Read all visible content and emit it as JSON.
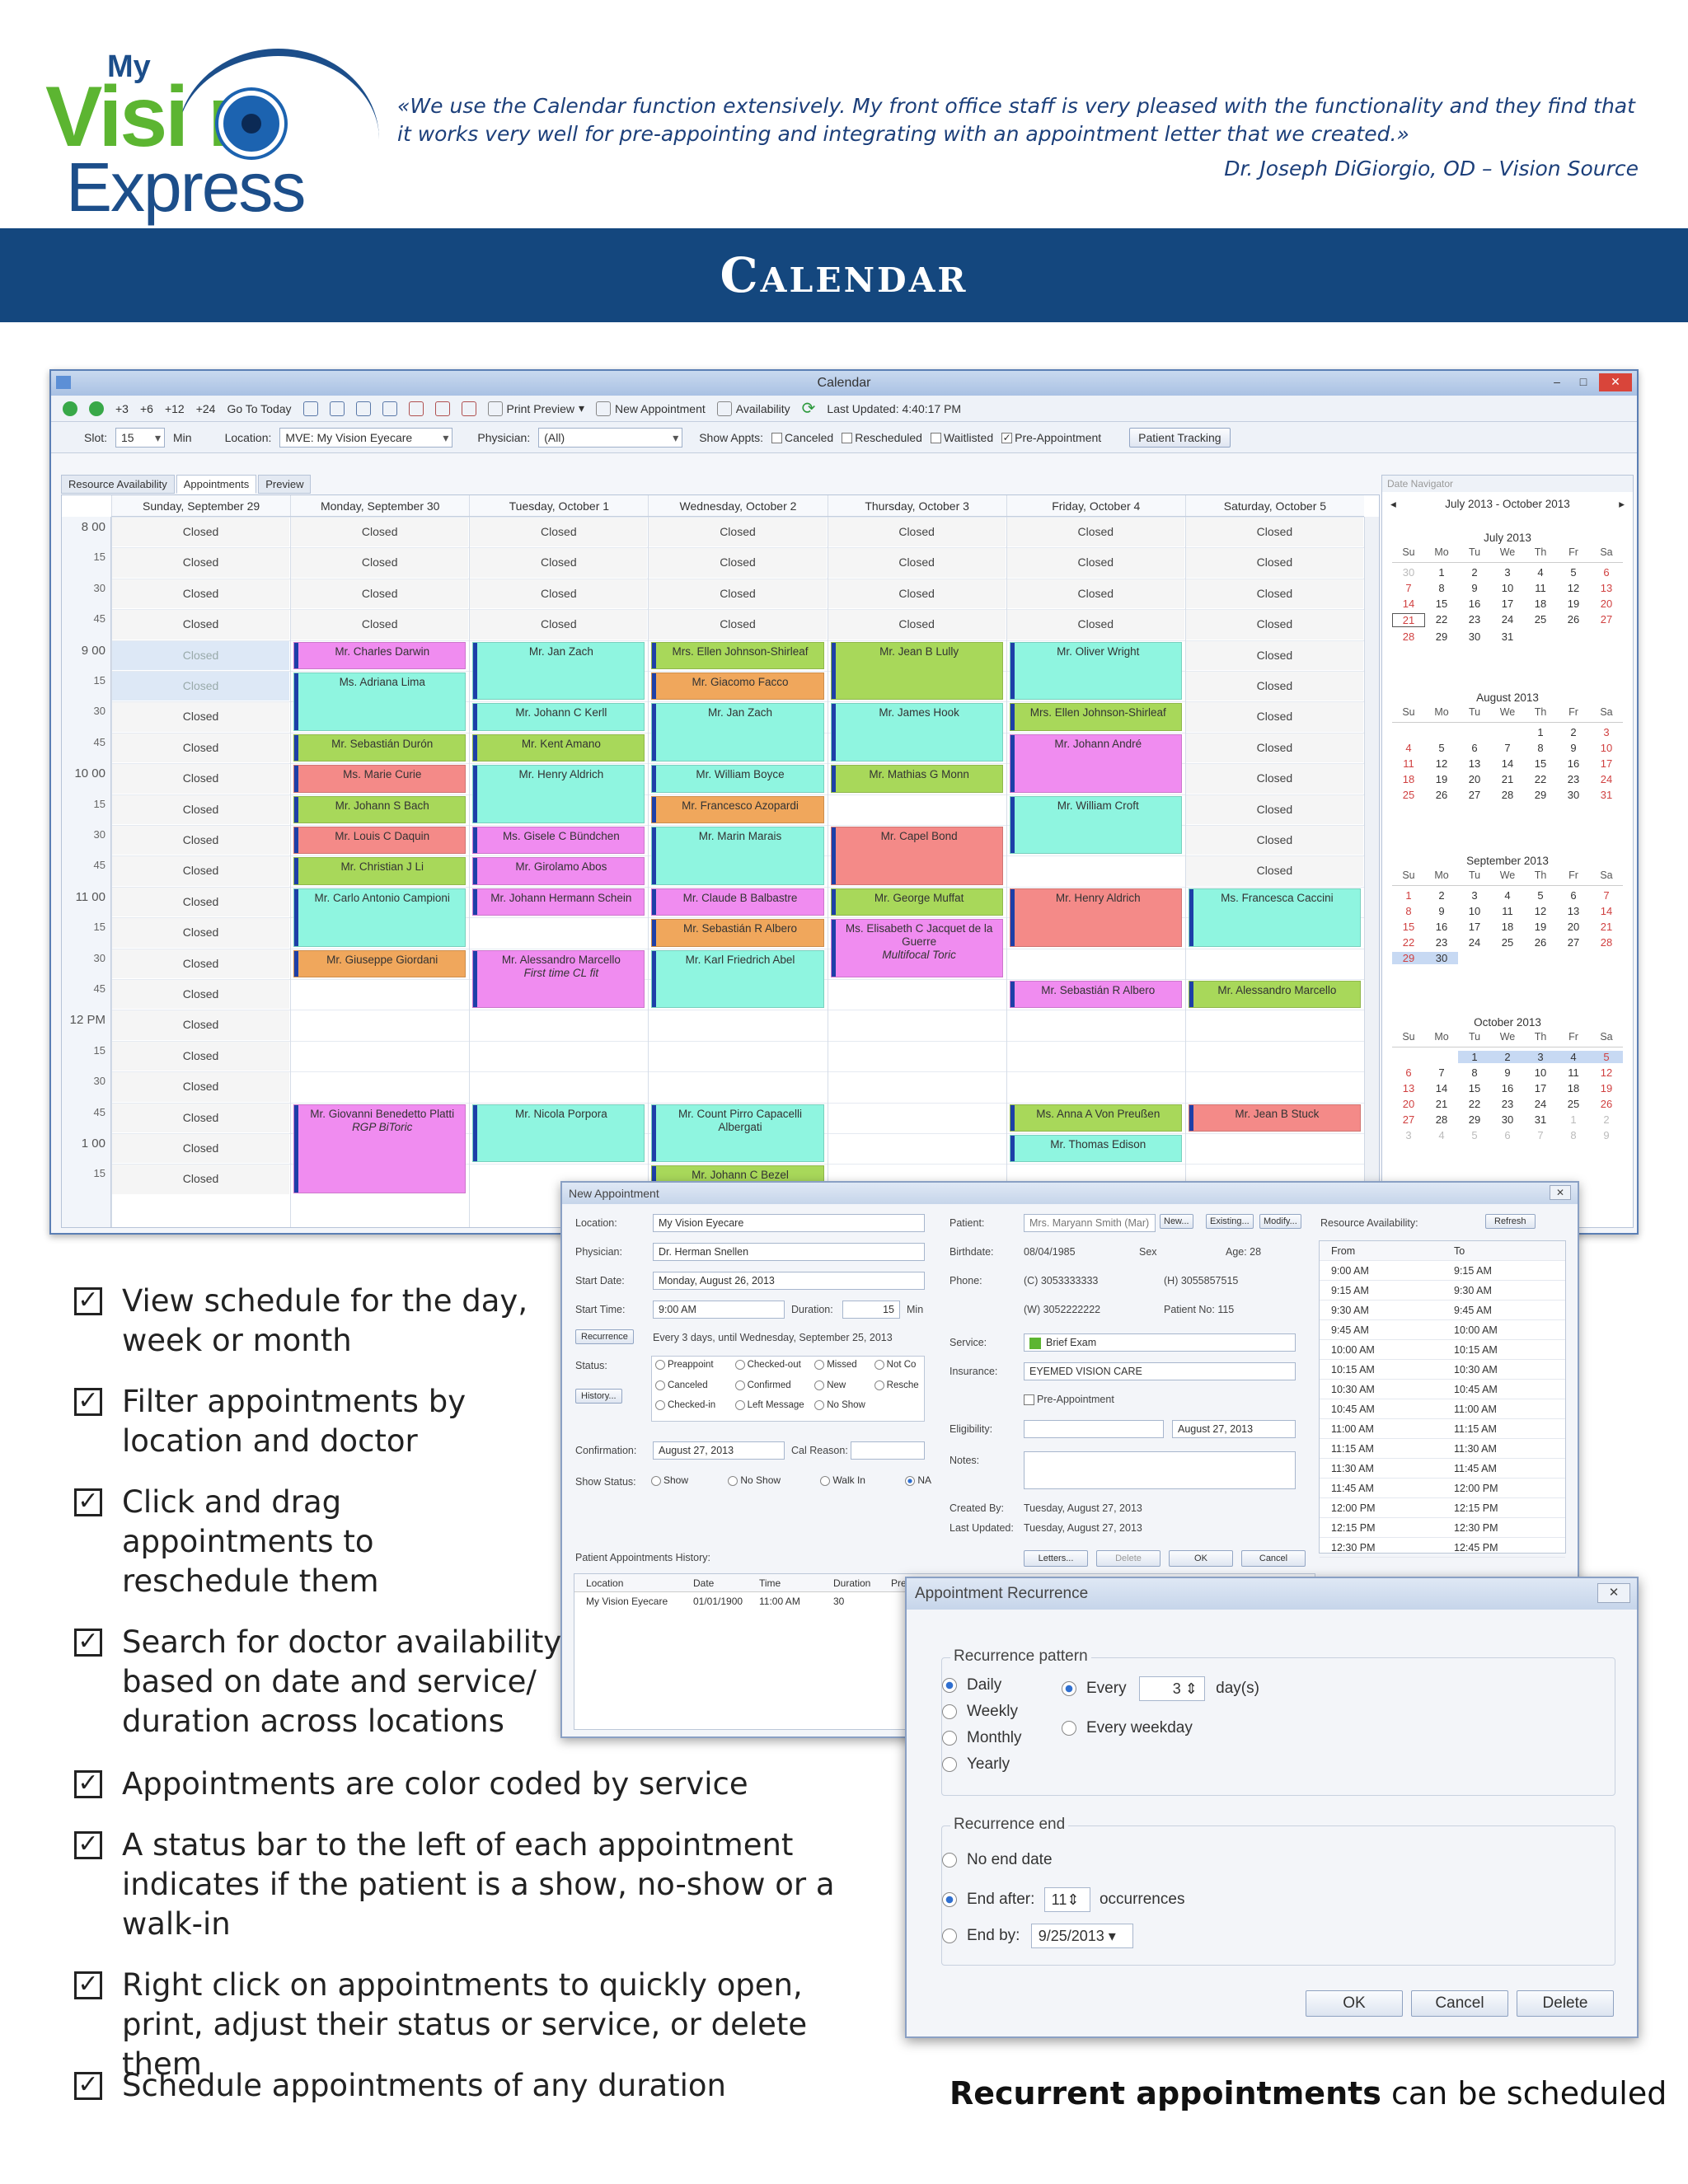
{
  "header": {
    "logo": {
      "my": "My",
      "vision": "Visi n",
      "express": "Express"
    },
    "quote": "«We use the Calendar function extensively. My front office staff is very pleased with the functionality and they find that it works very well for pre-appointing and integrating with an appointment letter that we created.»",
    "quote_author": "Dr. Joseph DiGiorgio, OD – Vision Source",
    "banner_title": "Calendar"
  },
  "calendar_window": {
    "title": "Calendar",
    "toolbar": {
      "increments": [
        "+3",
        "+6",
        "+12",
        "+24"
      ],
      "go_to_today": "Go To Today",
      "print_preview": "Print Preview",
      "new_appointment": "New Appointment",
      "availability": "Availability",
      "last_updated": "Last Updated: 4:40:17 PM"
    },
    "filters": {
      "slot_label": "Slot:",
      "slot_value": "15",
      "min_label": "Min",
      "location_label": "Location:",
      "location_value": "MVE: My Vision Eyecare",
      "physician_label": "Physician:",
      "physician_value": "(All)",
      "show_appts_label": "Show Appts:",
      "checks": [
        {
          "label": "Canceled",
          "checked": false
        },
        {
          "label": "Rescheduled",
          "checked": false
        },
        {
          "label": "Waitlisted",
          "checked": false
        },
        {
          "label": "Pre-Appointment",
          "checked": true
        }
      ],
      "patient_tracking": "Patient Tracking"
    },
    "tabs": [
      "Resource Availability",
      "Appointments",
      "Preview"
    ],
    "days": [
      "Sunday, September 29",
      "Monday, September 30",
      "Tuesday, October 1",
      "Wednesday, October 2",
      "Thursday, October 3",
      "Friday, October 4",
      "Saturday, October 5"
    ],
    "time_labels": [
      {
        "t": "8",
        "m": "00"
      },
      {
        "m": "15"
      },
      {
        "m": "30"
      },
      {
        "m": "45"
      },
      {
        "t": "9",
        "m": "00"
      },
      {
        "m": "15"
      },
      {
        "m": "30"
      },
      {
        "m": "45"
      },
      {
        "t": "10",
        "m": "00"
      },
      {
        "m": "15"
      },
      {
        "m": "30"
      },
      {
        "m": "45"
      },
      {
        "t": "11",
        "m": "00"
      },
      {
        "m": "15"
      },
      {
        "m": "30"
      },
      {
        "m": "45"
      },
      {
        "t": "12",
        "m": "PM"
      },
      {
        "m": "15"
      },
      {
        "m": "30"
      },
      {
        "m": "45"
      },
      {
        "t": "1",
        "m": "00"
      },
      {
        "m": "15"
      }
    ],
    "closed_label": "Closed",
    "closed_slots": [
      [
        0,
        0
      ],
      [
        0,
        1
      ],
      [
        0,
        2
      ],
      [
        0,
        3
      ],
      [
        0,
        4
      ],
      [
        0,
        5
      ],
      [
        0,
        6
      ],
      [
        0,
        7
      ],
      [
        0,
        8
      ],
      [
        0,
        9
      ],
      [
        0,
        10
      ],
      [
        0,
        11
      ],
      [
        0,
        12
      ],
      [
        0,
        13
      ],
      [
        0,
        14
      ],
      [
        0,
        15
      ],
      [
        0,
        16
      ],
      [
        0,
        17
      ],
      [
        0,
        18
      ],
      [
        0,
        19
      ],
      [
        0,
        20
      ],
      [
        0,
        21
      ],
      [
        1,
        0
      ],
      [
        1,
        1
      ],
      [
        1,
        2
      ],
      [
        1,
        3
      ],
      [
        2,
        0
      ],
      [
        2,
        1
      ],
      [
        2,
        2
      ],
      [
        2,
        3
      ],
      [
        3,
        0
      ],
      [
        3,
        1
      ],
      [
        3,
        2
      ],
      [
        3,
        3
      ],
      [
        4,
        0
      ],
      [
        4,
        1
      ],
      [
        4,
        2
      ],
      [
        4,
        3
      ],
      [
        5,
        0
      ],
      [
        5,
        1
      ],
      [
        5,
        2
      ],
      [
        5,
        3
      ],
      [
        6,
        0
      ],
      [
        6,
        1
      ],
      [
        6,
        2
      ],
      [
        6,
        3
      ],
      [
        6,
        4
      ],
      [
        6,
        5
      ],
      [
        6,
        6
      ],
      [
        6,
        7
      ],
      [
        6,
        8
      ],
      [
        6,
        9
      ],
      [
        6,
        10
      ],
      [
        6,
        11
      ]
    ],
    "appointments": [
      {
        "day": 1,
        "start": 4,
        "len": 1,
        "color": "#f08cf0",
        "label": "Mr. Charles Darwin"
      },
      {
        "day": 1,
        "start": 5,
        "len": 2,
        "color": "#8ff5e0",
        "label": "Ms. Adriana Lima"
      },
      {
        "day": 1,
        "start": 7,
        "len": 1,
        "color": "#a8d85a",
        "label": "Mr. Sebastián Durón"
      },
      {
        "day": 1,
        "start": 8,
        "len": 1,
        "color": "#f48a88",
        "label": "Ms. Marie Curie"
      },
      {
        "day": 1,
        "start": 9,
        "len": 1,
        "color": "#a8d85a",
        "label": "Mr. Johann S Bach"
      },
      {
        "day": 1,
        "start": 10,
        "len": 1,
        "color": "#f48a88",
        "label": "Mr. Louis C Daquin"
      },
      {
        "day": 1,
        "start": 11,
        "len": 1,
        "color": "#a8d85a",
        "label": "Mr. Christian J Li"
      },
      {
        "day": 1,
        "start": 12,
        "len": 2,
        "color": "#8ff5e0",
        "label": "Mr. Carlo Antonio Campioni"
      },
      {
        "day": 1,
        "start": 14,
        "len": 1,
        "color": "#f0a75c",
        "label": "Mr. Giuseppe Giordani"
      },
      {
        "day": 1,
        "start": 19,
        "len": 3,
        "color": "#f08cf0",
        "label": "Mr. Giovanni Benedetto Platti",
        "note": "RGP BiToric"
      },
      {
        "day": 2,
        "start": 4,
        "len": 2,
        "color": "#8ff5e0",
        "label": "Mr. Jan Zach"
      },
      {
        "day": 2,
        "start": 6,
        "len": 1,
        "color": "#8ff5e0",
        "label": "Mr. Johann C Kerll"
      },
      {
        "day": 2,
        "start": 7,
        "len": 1,
        "color": "#a8d85a",
        "label": "Mr. Kent Amano"
      },
      {
        "day": 2,
        "start": 8,
        "len": 2,
        "color": "#8ff5e0",
        "label": "Mr. Henry Aldrich"
      },
      {
        "day": 2,
        "start": 10,
        "len": 1,
        "color": "#f08cf0",
        "label": "Ms. Gisele C Bündchen"
      },
      {
        "day": 2,
        "start": 11,
        "len": 1,
        "color": "#f08cf0",
        "label": "Mr. Girolamo Abos"
      },
      {
        "day": 2,
        "start": 12,
        "len": 1,
        "color": "#f08cf0",
        "label": "Mr. Johann Hermann Schein"
      },
      {
        "day": 2,
        "start": 14,
        "len": 2,
        "color": "#f08cf0",
        "label": "Mr. Alessandro Marcello",
        "note": "First time CL fit"
      },
      {
        "day": 2,
        "start": 19,
        "len": 2,
        "color": "#8ff5e0",
        "label": "Mr. Nicola Porpora"
      },
      {
        "day": 3,
        "start": 4,
        "len": 1,
        "color": "#a8d85a",
        "label": "Mrs. Ellen Johnson-Shirleaf"
      },
      {
        "day": 3,
        "start": 5,
        "len": 1,
        "color": "#f0a75c",
        "label": "Mr. Giacomo Facco"
      },
      {
        "day": 3,
        "start": 6,
        "len": 2,
        "color": "#8ff5e0",
        "label": "Mr. Jan Zach"
      },
      {
        "day": 3,
        "start": 8,
        "len": 1,
        "color": "#8ff5e0",
        "label": "Mr. William Boyce"
      },
      {
        "day": 3,
        "start": 9,
        "len": 1,
        "color": "#f0a75c",
        "label": "Mr. Francesco Azopardi"
      },
      {
        "day": 3,
        "start": 10,
        "len": 2,
        "color": "#8ff5e0",
        "label": "Mr. Marin Marais"
      },
      {
        "day": 3,
        "start": 12,
        "len": 1,
        "color": "#f08cf0",
        "label": "Mr. Claude B Balbastre"
      },
      {
        "day": 3,
        "start": 13,
        "len": 1,
        "color": "#f0a75c",
        "label": "Mr. Sebastián R Albero"
      },
      {
        "day": 3,
        "start": 14,
        "len": 2,
        "color": "#8ff5e0",
        "label": "Mr. Karl Friedrich Abel"
      },
      {
        "day": 3,
        "start": 19,
        "len": 2,
        "color": "#8ff5e0",
        "label": "Mr. Count Pirro Capacelli Albergati"
      },
      {
        "day": 3,
        "start": 21,
        "len": 1,
        "color": "#a8d85a",
        "label": "Mr. Johann C Bezel"
      },
      {
        "day": 4,
        "start": 4,
        "len": 2,
        "color": "#a8d85a",
        "label": "Mr. Jean B Lully"
      },
      {
        "day": 4,
        "start": 6,
        "len": 2,
        "color": "#8ff5e0",
        "label": "Mr. James Hook"
      },
      {
        "day": 4,
        "start": 8,
        "len": 1,
        "color": "#a8d85a",
        "label": "Mr. Mathias G Monn"
      },
      {
        "day": 4,
        "start": 10,
        "len": 2,
        "color": "#f48a88",
        "label": "Mr. Capel Bond"
      },
      {
        "day": 4,
        "start": 12,
        "len": 1,
        "color": "#a8d85a",
        "label": "Mr. George Muffat"
      },
      {
        "day": 4,
        "start": 13,
        "len": 2,
        "color": "#f08cf0",
        "label": "Ms. Elisabeth C Jacquet de la Guerre",
        "note": "Multifocal Toric"
      },
      {
        "day": 5,
        "start": 4,
        "len": 2,
        "color": "#8ff5e0",
        "label": "Mr. Oliver Wright"
      },
      {
        "day": 5,
        "start": 6,
        "len": 1,
        "color": "#a8d85a",
        "label": "Mrs. Ellen Johnson-Shirleaf"
      },
      {
        "day": 5,
        "start": 7,
        "len": 2,
        "color": "#f08cf0",
        "label": "Mr. Johann André"
      },
      {
        "day": 5,
        "start": 9,
        "len": 2,
        "color": "#8ff5e0",
        "label": "Mr. William Croft"
      },
      {
        "day": 5,
        "start": 12,
        "len": 2,
        "color": "#f48a88",
        "label": "Mr. Henry Aldrich"
      },
      {
        "day": 5,
        "start": 15,
        "len": 1,
        "color": "#f08cf0",
        "label": "Mr. Sebastián R Albero"
      },
      {
        "day": 5,
        "start": 19,
        "len": 1,
        "color": "#a8d85a",
        "label": "Ms. Anna A Von Preußen"
      },
      {
        "day": 5,
        "start": 20,
        "len": 1,
        "color": "#8ff5e0",
        "label": "Mr. Thomas Edison"
      },
      {
        "day": 6,
        "start": 12,
        "len": 2,
        "color": "#8ff5e0",
        "label": "Ms. Francesca Caccini"
      },
      {
        "day": 6,
        "start": 15,
        "len": 1,
        "color": "#a8d85a",
        "label": "Mr. Alessandro Marcello"
      },
      {
        "day": 6,
        "start": 19,
        "len": 1,
        "color": "#f48a88",
        "label": "Mr. Jean B Stuck"
      }
    ],
    "navigator": {
      "title": "Date Navigator",
      "range": "July 2013 - October 2013",
      "dow": [
        "Su",
        "Mo",
        "Tu",
        "We",
        "Th",
        "Fr",
        "Sa"
      ],
      "months": [
        {
          "name": "July 2013",
          "days": [
            "30",
            "1",
            "2",
            "3",
            "4",
            "5",
            "6",
            "7",
            "8",
            "9",
            "10",
            "11",
            "12",
            "13",
            "14",
            "15",
            "16",
            "17",
            "18",
            "19",
            "20",
            "21",
            "22",
            "23",
            "24",
            "25",
            "26",
            "27",
            "28",
            "29",
            "30",
            "31"
          ]
        },
        {
          "name": "August 2013",
          "days": [
            "",
            "",
            "",
            "",
            "1",
            "2",
            "3",
            "4",
            "5",
            "6",
            "7",
            "8",
            "9",
            "10",
            "11",
            "12",
            "13",
            "14",
            "15",
            "16",
            "17",
            "18",
            "19",
            "20",
            "21",
            "22",
            "23",
            "24",
            "25",
            "26",
            "27",
            "28",
            "29",
            "30",
            "31"
          ]
        },
        {
          "name": "September 2013",
          "days": [
            "1",
            "2",
            "3",
            "4",
            "5",
            "6",
            "7",
            "8",
            "9",
            "10",
            "11",
            "12",
            "13",
            "14",
            "15",
            "16",
            "17",
            "18",
            "19",
            "20",
            "21",
            "22",
            "23",
            "24",
            "25",
            "26",
            "27",
            "28",
            "29",
            "30"
          ]
        },
        {
          "name": "October 2013",
          "days": [
            "",
            "",
            "1",
            "2",
            "3",
            "4",
            "5",
            "6",
            "7",
            "8",
            "9",
            "10",
            "11",
            "12",
            "13",
            "14",
            "15",
            "16",
            "17",
            "18",
            "19",
            "20",
            "21",
            "22",
            "23",
            "24",
            "25",
            "26",
            "27",
            "28",
            "29",
            "30",
            "31",
            "1",
            "2",
            "3",
            "4",
            "5",
            "6",
            "7",
            "8",
            "9"
          ]
        }
      ]
    }
  },
  "new_appointment": {
    "title": "New Appointment",
    "location_label": "Location:",
    "location_value": "My Vision Eyecare",
    "physician_label": "Physician:",
    "physician_value": "Dr. Herman Snellen",
    "start_date_label": "Start Date:",
    "start_date_value": "Monday, August 26, 2013",
    "start_time_label": "Start Time:",
    "start_time_value": "9:00 AM",
    "duration_label": "Duration:",
    "duration_value": "15",
    "duration_unit": "Min",
    "recurrence_button": "Recurrence",
    "recurrence_text": "Every 3 days, until Wednesday, September 25, 2013",
    "status_label": "Status:",
    "history_button": "History...",
    "status_options": [
      "Preappoint",
      "Checked-out",
      "Missed",
      "Not Co",
      "Canceled",
      "Confirmed",
      "New",
      "Resche",
      "Checked-in",
      "Left Message",
      "No Show"
    ],
    "confirmation_label": "Confirmation:",
    "confirmation_value": "August 27, 2013",
    "cal_reason_label": "Cal Reason:",
    "show_status_label": "Show Status:",
    "show_status_options": [
      "Show",
      "No Show",
      "Walk In",
      "NA"
    ],
    "patient_label": "Patient:",
    "patient_value": "Mrs. Maryann Smith (Mar)",
    "patient_buttons": [
      "New...",
      "Existing...",
      "Modify..."
    ],
    "birthdate_label": "Birthdate:",
    "birthdate_value": "08/04/1985",
    "sex_label": "Sex",
    "age_label": "Age: 28",
    "phone_label": "Phone:",
    "phone_c": "(C) 3053333333",
    "phone_h": "(H) 3055857515",
    "phone_w": "(W) 3052222222",
    "patient_no": "Patient No: 115",
    "service_label": "Service:",
    "service_value": "Brief Exam",
    "insurance_label": "Insurance:",
    "insurance_value": "EYEMED VISION CARE",
    "pre_appointment": "Pre-Appointment",
    "eligibility_label": "Eligibility:",
    "eligibility_date": "August 27, 2013",
    "notes_label": "Notes:",
    "created_by_label": "Created By:",
    "created_by_value": "Tuesday, August 27, 2013",
    "last_updated_label": "Last Updated:",
    "last_updated_value": "Tuesday, August 27, 2013",
    "bottom_buttons": [
      "Letters...",
      "Delete",
      "OK",
      "Cancel"
    ],
    "history_label": "Patient Appointments History:",
    "history_cols": [
      "Location",
      "Date",
      "Time",
      "Duration",
      "Pre-App"
    ],
    "history_row": [
      "My Vision Eyecare",
      "01/01/1900",
      "11:00 AM",
      "30",
      ""
    ],
    "resource_label": "Resource Availability:",
    "refresh": "Refresh",
    "resource_cols": [
      "From",
      "To"
    ],
    "resource_rows": [
      [
        "9:00 AM",
        "9:15 AM"
      ],
      [
        "9:15 AM",
        "9:30 AM"
      ],
      [
        "9:30 AM",
        "9:45 AM"
      ],
      [
        "9:45 AM",
        "10:00 AM"
      ],
      [
        "10:00 AM",
        "10:15 AM"
      ],
      [
        "10:15 AM",
        "10:30 AM"
      ],
      [
        "10:30 AM",
        "10:45 AM"
      ],
      [
        "10:45 AM",
        "11:00 AM"
      ],
      [
        "11:00 AM",
        "11:15 AM"
      ],
      [
        "11:15 AM",
        "11:30 AM"
      ],
      [
        "11:30 AM",
        "11:45 AM"
      ],
      [
        "11:45 AM",
        "12:00 PM"
      ],
      [
        "12:00 PM",
        "12:15 PM"
      ],
      [
        "12:15 PM",
        "12:30 PM"
      ],
      [
        "12:30 PM",
        "12:45 PM"
      ]
    ]
  },
  "recurrence": {
    "title": "Appointment Recurrence",
    "pattern_label": "Recurrence pattern",
    "patterns": [
      "Daily",
      "Weekly",
      "Monthly",
      "Yearly"
    ],
    "every_label": "Every",
    "every_value": "3",
    "every_unit": "day(s)",
    "every_weekday": "Every weekday",
    "end_label": "Recurrence end",
    "no_end": "No end date",
    "end_after": "End after:",
    "end_after_value": "11",
    "occurrences": "occurrences",
    "end_by": "End by:",
    "end_by_value": "9/25/2013",
    "buttons": [
      "OK",
      "Cancel",
      "Delete"
    ]
  },
  "features": [
    "View schedule for the day, week or month",
    "Filter appointments by location and doctor",
    "Click and drag appointments to reschedule them",
    "Search for doctor availability based on date and service/ duration across locations",
    "Appointments are color coded by service",
    "A status bar to the left of each appointment indicates if the patient is a show, no-show or a walk-in",
    "Right click on appointments to quickly open, print, adjust their status or service, or delete them",
    "Schedule appointments of any duration"
  ],
  "caption": {
    "bold": "Recurrent appointments",
    "rest": " can be scheduled"
  }
}
